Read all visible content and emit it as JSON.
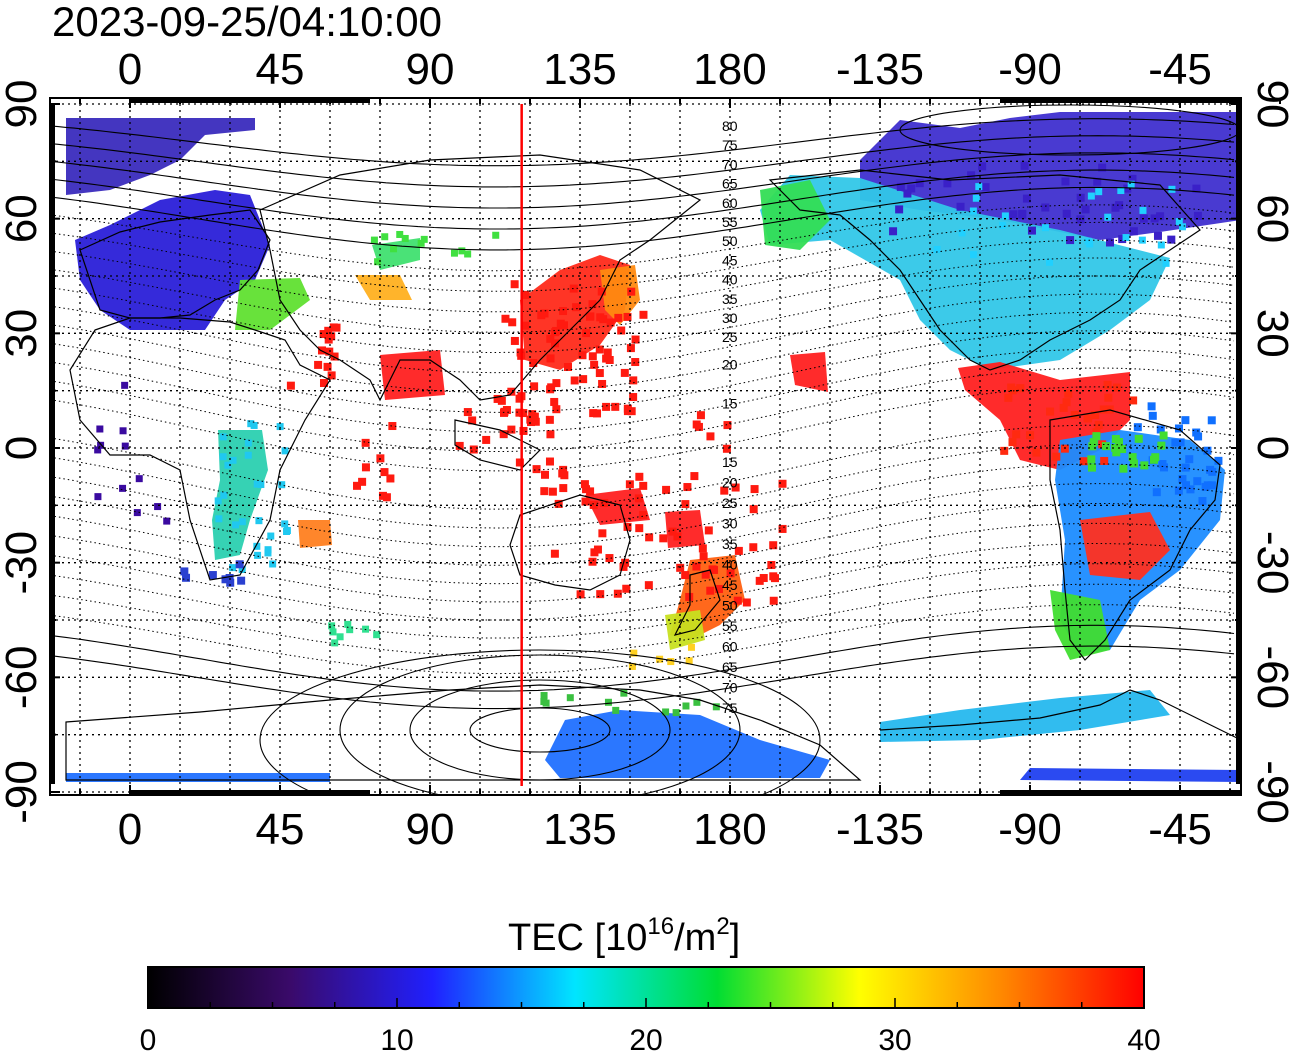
{
  "title": "2023-09-25/04:10:00",
  "map": {
    "lon_range": [
      -25,
      345
    ],
    "lat_range": [
      -90,
      90
    ],
    "top_ticks": [
      "0",
      "45",
      "90",
      "135",
      "180",
      "-135",
      "-90",
      "-45"
    ],
    "bottom_ticks": [
      "0",
      "45",
      "90",
      "135",
      "180",
      "-135",
      "-90",
      "-45"
    ],
    "left_ticks": [
      "90",
      "60",
      "30",
      "0",
      "-30",
      "-60",
      "-90"
    ],
    "right_ticks": [
      "90",
      "60",
      "30",
      "0",
      "-30",
      "-60",
      "-90"
    ],
    "subsolar_longitude": 117.5,
    "subsolar_line_color": "#ff0000",
    "grid": true,
    "contour_labels_north": [
      "80",
      "75",
      "70",
      "65",
      "60",
      "55",
      "50",
      "45",
      "40",
      "35",
      "30",
      "25",
      "20",
      "15"
    ],
    "contour_labels_south": [
      "15",
      "20",
      "25",
      "30",
      "35",
      "40",
      "45",
      "50",
      "55",
      "60",
      "65",
      "70",
      "75"
    ]
  },
  "colorbar": {
    "title_main": "TEC  [10",
    "title_exp1": "16",
    "title_mid": "/m",
    "title_exp2": "2",
    "title_end": "]",
    "min": 0,
    "max": 40,
    "labels": [
      "0",
      "10",
      "20",
      "30",
      "40"
    ],
    "colors": [
      "#000000",
      "#3a0a6a",
      "#2020ff",
      "#00e5ff",
      "#00dd33",
      "#ffff00",
      "#ff8800",
      "#ff0000"
    ]
  },
  "tec_regions": [
    {
      "name": "europe",
      "color": "#2a1fd8"
    },
    {
      "name": "arctic-scandinavia",
      "color": "#3a2bbd"
    },
    {
      "name": "north-america",
      "color": "#31c7e8"
    },
    {
      "name": "canada-north",
      "color": "#3f2fcf"
    },
    {
      "name": "central-america",
      "color": "#ff2020"
    },
    {
      "name": "south-america",
      "color": "#1c8cff"
    },
    {
      "name": "japan",
      "color": "#ff2a1a"
    },
    {
      "name": "new-zealand",
      "color": "#ff6010"
    },
    {
      "name": "antarctica",
      "color": "#2070ff"
    },
    {
      "name": "africa",
      "color": "#21c8a0"
    }
  ]
}
